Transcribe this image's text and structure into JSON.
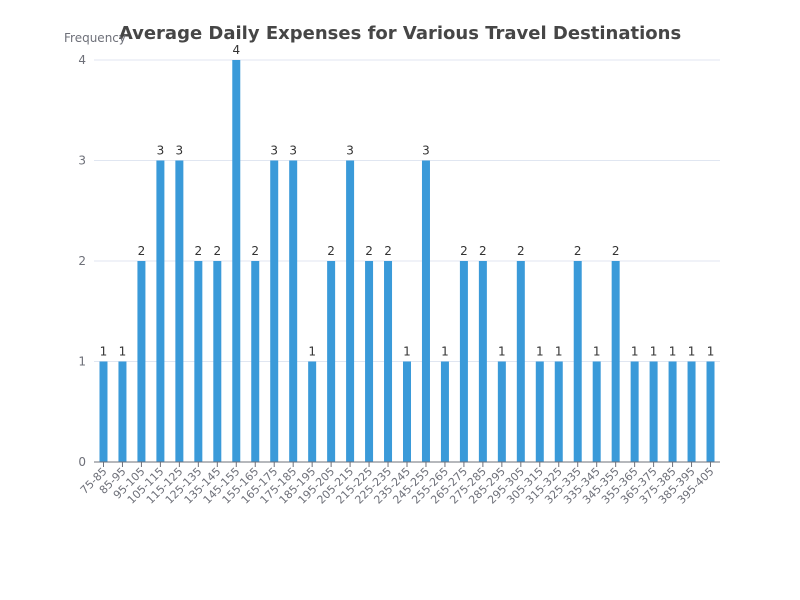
{
  "chart_data": {
    "type": "bar",
    "title": "Average Daily Expenses for Various Travel Destinations",
    "xlabel": "",
    "ylabel": "Frequency",
    "ylim": [
      0,
      4
    ],
    "yticks": [
      0,
      1,
      2,
      3,
      4
    ],
    "grid": true,
    "bar_color": "#3a9ad9",
    "categories": [
      "75-85",
      "85-95",
      "95-105",
      "105-115",
      "115-125",
      "125-135",
      "135-145",
      "145-155",
      "155-165",
      "165-175",
      "175-185",
      "185-195",
      "195-205",
      "205-215",
      "215-225",
      "225-235",
      "235-245",
      "245-255",
      "255-265",
      "265-275",
      "275-285",
      "285-295",
      "295-305",
      "305-315",
      "315-325",
      "325-335",
      "335-345",
      "345-355",
      "355-365",
      "365-375",
      "375-385",
      "385-395",
      "395-405"
    ],
    "values": [
      1,
      1,
      2,
      3,
      3,
      2,
      2,
      4,
      2,
      3,
      3,
      1,
      2,
      3,
      2,
      2,
      1,
      3,
      1,
      2,
      2,
      1,
      2,
      1,
      1,
      2,
      1,
      2,
      1,
      1,
      1,
      1,
      1
    ]
  }
}
